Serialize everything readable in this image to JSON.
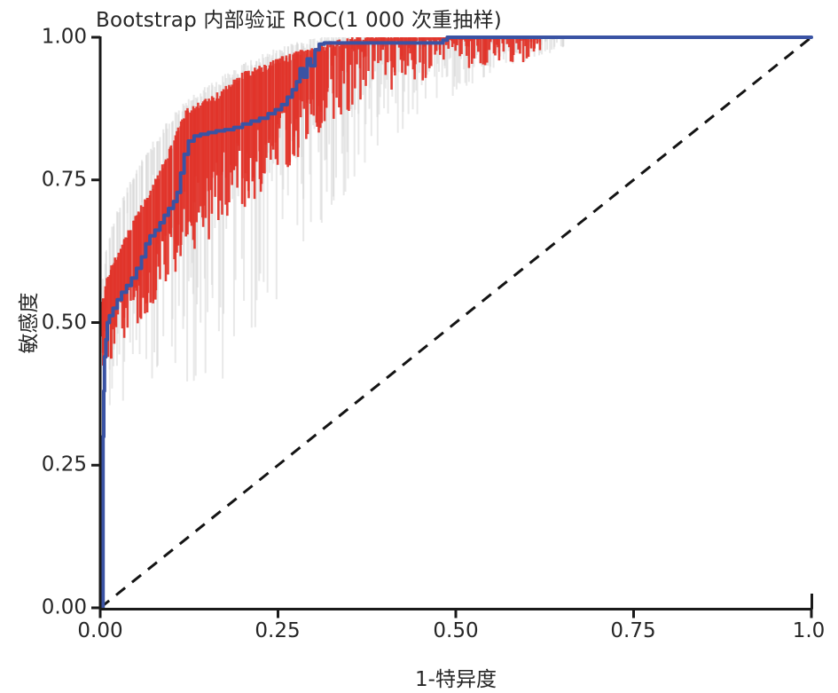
{
  "title": "Bootstrap 内部验证 ROC(1 000 次重抽样)",
  "axes": {
    "x_label": "1-特异度",
    "y_label": "敏感度",
    "x_ticks": [
      "0.00",
      "0.25",
      "0.50",
      "0.75",
      "1.0"
    ],
    "x_tick_values": [
      0,
      0.25,
      0.5,
      0.75,
      1
    ],
    "y_ticks": [
      "0.00",
      "0.25",
      "0.50",
      "0.75",
      "1.00"
    ],
    "y_tick_values": [
      0,
      0.25,
      0.5,
      0.75,
      1
    ]
  },
  "colors": {
    "mean_roc_blue": "#3A53A4",
    "bootstrap_red": "#E0352B",
    "bootstrap_gray": "#D6D6D6",
    "diagonal_black": "#141414",
    "axis_black": "#1A1A1A",
    "text": "#262626",
    "background": "#FFFFFF"
  },
  "chart_data": {
    "type": "line",
    "title": "Bootstrap 内部验证 ROC(1 000 次重抽样)",
    "xlabel": "1-特异度",
    "ylabel": "敏感度",
    "xlim": [
      0,
      1
    ],
    "ylim": [
      0,
      1
    ],
    "grid": false,
    "legend": "none",
    "resamples_label": "1 000",
    "series": [
      {
        "name": "mean-roc-curve",
        "style": "step",
        "color_key": "mean_roc_blue",
        "points": [
          [
            0,
            0
          ],
          [
            0.004,
            0.005
          ],
          [
            0.004,
            0.3
          ],
          [
            0.005,
            0.38
          ],
          [
            0.006,
            0.44
          ],
          [
            0.008,
            0.47
          ],
          [
            0.01,
            0.5
          ],
          [
            0.013,
            0.512
          ],
          [
            0.018,
            0.525
          ],
          [
            0.024,
            0.54
          ],
          [
            0.03,
            0.553
          ],
          [
            0.037,
            0.565
          ],
          [
            0.044,
            0.578
          ],
          [
            0.051,
            0.595
          ],
          [
            0.058,
            0.615
          ],
          [
            0.064,
            0.638
          ],
          [
            0.07,
            0.652
          ],
          [
            0.077,
            0.662
          ],
          [
            0.084,
            0.675
          ],
          [
            0.09,
            0.688
          ],
          [
            0.096,
            0.7
          ],
          [
            0.103,
            0.712
          ],
          [
            0.108,
            0.728
          ],
          [
            0.113,
            0.762
          ],
          [
            0.118,
            0.795
          ],
          [
            0.124,
            0.818
          ],
          [
            0.132,
            0.827
          ],
          [
            0.141,
            0.83
          ],
          [
            0.152,
            0.833
          ],
          [
            0.163,
            0.836
          ],
          [
            0.175,
            0.838
          ],
          [
            0.188,
            0.842
          ],
          [
            0.2,
            0.848
          ],
          [
            0.212,
            0.853
          ],
          [
            0.224,
            0.858
          ],
          [
            0.236,
            0.866
          ],
          [
            0.246,
            0.873
          ],
          [
            0.255,
            0.882
          ],
          [
            0.263,
            0.895
          ],
          [
            0.27,
            0.908
          ],
          [
            0.276,
            0.922
          ],
          [
            0.281,
            0.945
          ],
          [
            0.286,
            0.93
          ],
          [
            0.291,
            0.962
          ],
          [
            0.296,
            0.95
          ],
          [
            0.302,
            0.978
          ],
          [
            0.308,
            0.988
          ],
          [
            0.315,
            0.99
          ],
          [
            0.475,
            0.99
          ],
          [
            0.482,
            0.995
          ],
          [
            0.488,
            1.0
          ],
          [
            1.0,
            1.0
          ]
        ]
      },
      {
        "name": "bootstrap-red-band",
        "style": "spike-band",
        "color_key": "bootstrap_red",
        "x": [
          0.002,
          0.01,
          0.02,
          0.03,
          0.04,
          0.06,
          0.08,
          0.1,
          0.12,
          0.14,
          0.16,
          0.18,
          0.2,
          0.22,
          0.25,
          0.28,
          0.31,
          0.34,
          0.37,
          0.4,
          0.44,
          0.48,
          0.52,
          0.56,
          0.6,
          0.62
        ],
        "top": [
          0.52,
          0.57,
          0.6,
          0.625,
          0.65,
          0.7,
          0.745,
          0.8,
          0.86,
          0.875,
          0.885,
          0.905,
          0.925,
          0.935,
          0.95,
          0.965,
          0.975,
          0.985,
          0.99,
          0.998,
          0.998,
          0.998,
          0.998,
          0.998,
          0.998,
          0.998
        ],
        "bottom": [
          0.4,
          0.42,
          0.44,
          0.455,
          0.47,
          0.5,
          0.535,
          0.565,
          0.6,
          0.625,
          0.65,
          0.672,
          0.695,
          0.72,
          0.755,
          0.79,
          0.825,
          0.855,
          0.882,
          0.9,
          0.917,
          0.93,
          0.94,
          0.948,
          0.955,
          0.96
        ],
        "x_end": 0.62
      },
      {
        "name": "bootstrap-gray-band",
        "style": "spike-band",
        "color_key": "bootstrap_gray",
        "x": [
          0.002,
          0.01,
          0.02,
          0.03,
          0.05,
          0.07,
          0.09,
          0.11,
          0.13,
          0.15,
          0.18,
          0.21,
          0.24,
          0.27,
          0.3,
          0.33,
          0.36,
          0.4,
          0.44,
          0.48,
          0.52,
          0.56,
          0.6,
          0.63,
          0.655
        ],
        "top": [
          0.55,
          0.63,
          0.67,
          0.7,
          0.755,
          0.795,
          0.83,
          0.862,
          0.885,
          0.9,
          0.925,
          0.945,
          0.962,
          0.975,
          0.985,
          0.992,
          0.996,
          0.999,
          1.0,
          1.0,
          1.0,
          1.0,
          1.0,
          1.0,
          1.0
        ],
        "bottom": [
          0.3,
          0.33,
          0.345,
          0.355,
          0.375,
          0.39,
          0.4,
          0.385,
          0.355,
          0.37,
          0.41,
          0.46,
          0.52,
          0.585,
          0.645,
          0.7,
          0.755,
          0.81,
          0.85,
          0.885,
          0.915,
          0.94,
          0.958,
          0.97,
          0.985
        ],
        "x_end": 0.655
      },
      {
        "name": "chance-diagonal",
        "style": "dashed",
        "color_key": "diagonal_black",
        "points": [
          [
            0,
            0
          ],
          [
            1,
            1
          ]
        ]
      }
    ]
  }
}
